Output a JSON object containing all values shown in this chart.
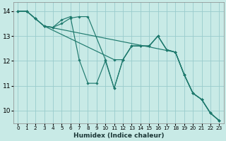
{
  "xlabel": "Humidex (Indice chaleur)",
  "background_color": "#c8eae6",
  "grid_color": "#99cccc",
  "line_color": "#1f7a6e",
  "ylim": [
    9.5,
    14.35
  ],
  "xlim": [
    -0.5,
    23.5
  ],
  "yticks": [
    10,
    11,
    12,
    13,
    14
  ],
  "xticks": [
    0,
    1,
    2,
    3,
    4,
    5,
    6,
    7,
    8,
    9,
    10,
    11,
    12,
    13,
    14,
    15,
    16,
    17,
    18,
    19,
    20,
    21,
    22,
    23
  ],
  "series1": [
    [
      0,
      14.0
    ],
    [
      1,
      14.0
    ],
    [
      2,
      13.7
    ],
    [
      3,
      13.4
    ],
    [
      4,
      13.35
    ],
    [
      5,
      13.65
    ],
    [
      6,
      13.78
    ],
    [
      7,
      12.05
    ],
    [
      8,
      11.1
    ],
    [
      9,
      11.1
    ],
    [
      10,
      12.0
    ],
    [
      11,
      10.9
    ],
    [
      12,
      12.05
    ],
    [
      13,
      12.6
    ],
    [
      14,
      12.6
    ],
    [
      15,
      12.6
    ],
    [
      16,
      13.0
    ],
    [
      17,
      12.45
    ],
    [
      18,
      12.35
    ],
    [
      19,
      11.45
    ],
    [
      20,
      10.7
    ],
    [
      21,
      10.45
    ],
    [
      22,
      9.9
    ],
    [
      23,
      9.6
    ]
  ],
  "series2": [
    [
      0,
      14.0
    ],
    [
      1,
      14.0
    ],
    [
      2,
      13.7
    ],
    [
      3,
      13.4
    ],
    [
      4,
      13.35
    ],
    [
      5,
      13.5
    ],
    [
      6,
      13.72
    ],
    [
      7,
      13.78
    ],
    [
      8,
      13.78
    ],
    [
      10,
      12.05
    ],
    [
      11,
      10.9
    ],
    [
      12,
      12.05
    ],
    [
      13,
      12.6
    ],
    [
      14,
      12.6
    ],
    [
      15,
      12.6
    ],
    [
      16,
      13.0
    ],
    [
      17,
      12.45
    ],
    [
      18,
      12.35
    ],
    [
      19,
      11.45
    ],
    [
      20,
      10.7
    ],
    [
      21,
      10.45
    ],
    [
      22,
      9.9
    ],
    [
      23,
      9.6
    ]
  ],
  "series3": [
    [
      0,
      14.0
    ],
    [
      1,
      14.0
    ],
    [
      2,
      13.7
    ],
    [
      3,
      13.4
    ],
    [
      11,
      12.05
    ],
    [
      12,
      12.05
    ],
    [
      13,
      12.6
    ],
    [
      14,
      12.6
    ],
    [
      15,
      12.6
    ],
    [
      16,
      13.0
    ],
    [
      17,
      12.45
    ],
    [
      18,
      12.35
    ],
    [
      19,
      11.45
    ],
    [
      20,
      10.7
    ],
    [
      21,
      10.45
    ],
    [
      22,
      9.9
    ],
    [
      23,
      9.6
    ]
  ],
  "series4": [
    [
      0,
      14.0
    ],
    [
      1,
      14.0
    ],
    [
      2,
      13.7
    ],
    [
      3,
      13.4
    ],
    [
      18,
      12.35
    ],
    [
      19,
      11.45
    ],
    [
      20,
      10.7
    ],
    [
      21,
      10.45
    ],
    [
      22,
      9.9
    ],
    [
      23,
      9.6
    ]
  ]
}
